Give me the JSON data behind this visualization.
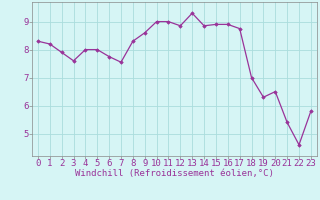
{
  "x": [
    0,
    1,
    2,
    3,
    4,
    5,
    6,
    7,
    8,
    9,
    10,
    11,
    12,
    13,
    14,
    15,
    16,
    17,
    18,
    19,
    20,
    21,
    22,
    23
  ],
  "y": [
    8.3,
    8.2,
    7.9,
    7.6,
    8.0,
    8.0,
    7.75,
    7.55,
    8.3,
    8.6,
    9.0,
    9.0,
    8.85,
    9.3,
    8.85,
    8.9,
    8.9,
    8.75,
    7.0,
    6.3,
    6.5,
    5.4,
    4.6,
    5.8
  ],
  "line_color": "#993399",
  "marker": "D",
  "marker_size": 1.8,
  "linewidth": 0.9,
  "bg_color": "#d6f5f5",
  "grid_color": "#aadddd",
  "xlabel": "Windchill (Refroidissement éolien,°C)",
  "xlabel_color": "#993399",
  "xlabel_fontsize": 6.5,
  "ylabel_ticks": [
    5,
    6,
    7,
    8,
    9
  ],
  "xlim": [
    -0.5,
    23.5
  ],
  "ylim": [
    4.2,
    9.7
  ],
  "tick_fontsize": 6.5,
  "tick_color": "#993399",
  "spine_color": "#888888"
}
